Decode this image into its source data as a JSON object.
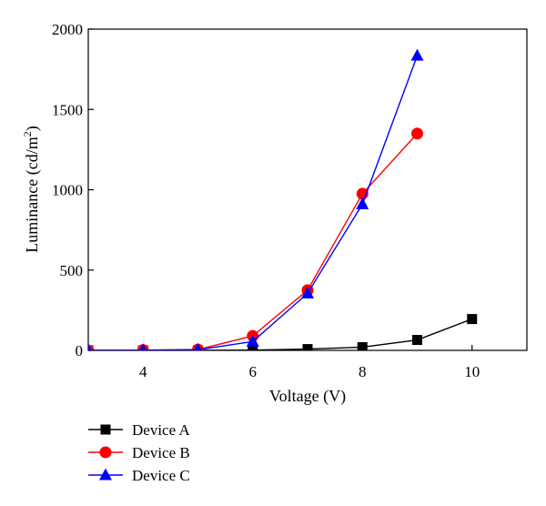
{
  "chart_data": {
    "type": "line",
    "title": "",
    "xlabel": "Voltage (V)",
    "ylabel": "Luminance (cd/m",
    "ylabel_sup": "2",
    "ylabel_close": ")",
    "xlim": [
      3,
      11
    ],
    "ylim": [
      0,
      2000
    ],
    "xticks": [
      4,
      6,
      8,
      10
    ],
    "yticks": [
      0,
      500,
      1000,
      1500,
      2000
    ],
    "grid": false,
    "legend_position": "bottom-left",
    "series": [
      {
        "name": "Device A",
        "color": "#000000",
        "marker": "square",
        "x": [
          3,
          4,
          5,
          6,
          7,
          8,
          9,
          10
        ],
        "y": [
          0,
          0,
          0,
          2,
          8,
          20,
          65,
          195
        ]
      },
      {
        "name": "Device B",
        "color": "#ff0000",
        "marker": "circle",
        "x": [
          3,
          4,
          5,
          6,
          7,
          8,
          9
        ],
        "y": [
          0,
          2,
          5,
          90,
          375,
          975,
          1350
        ]
      },
      {
        "name": "Device C",
        "color": "#0000ff",
        "marker": "triangle",
        "x": [
          3,
          4,
          5,
          6,
          7,
          8,
          9
        ],
        "y": [
          0,
          1,
          4,
          55,
          355,
          910,
          1835
        ]
      }
    ]
  }
}
